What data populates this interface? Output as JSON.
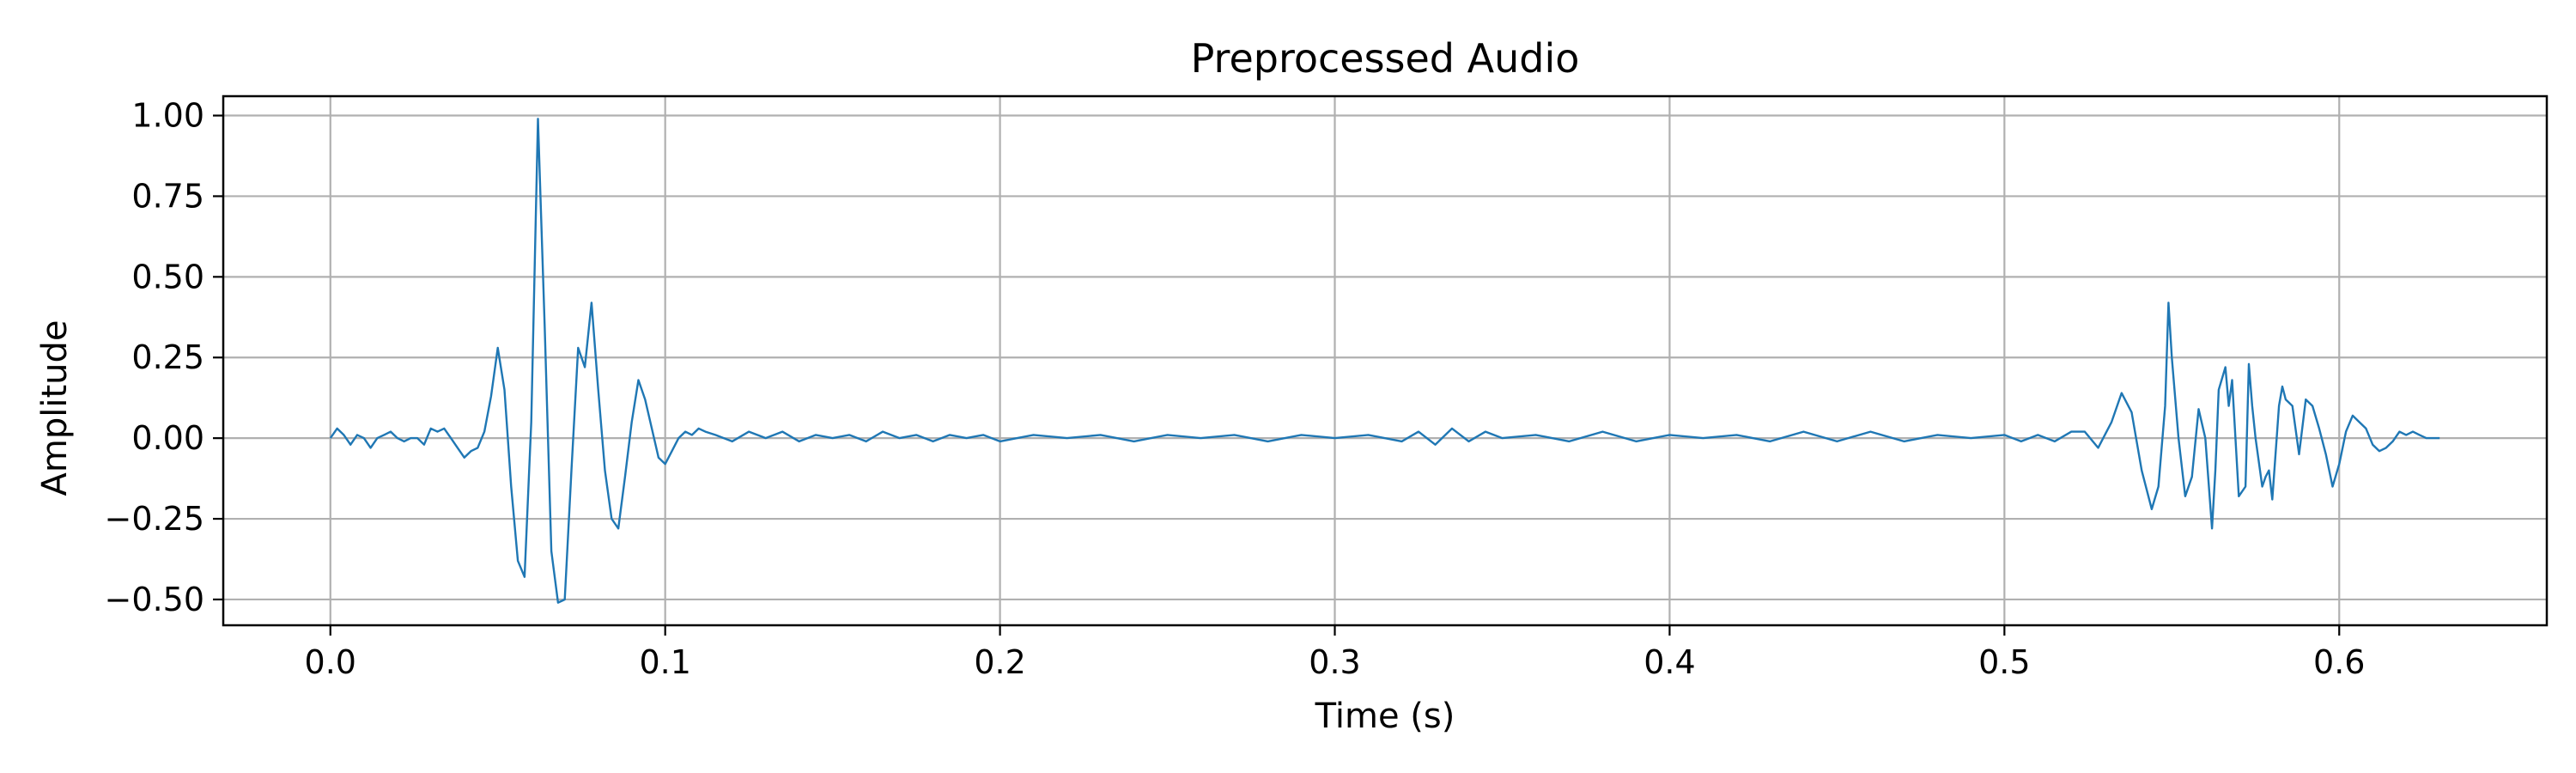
{
  "chart_data": {
    "type": "line",
    "title": "Preprocessed Audio",
    "xlabel": "Time (s)",
    "ylabel": "Amplitude",
    "xlim": [
      -0.032,
      0.662
    ],
    "ylim": [
      -0.58,
      1.06
    ],
    "grid": true,
    "x_ticks": [
      0.0,
      0.1,
      0.2,
      0.3,
      0.4,
      0.5,
      0.6
    ],
    "x_tick_labels": [
      "0.0",
      "0.1",
      "0.2",
      "0.3",
      "0.4",
      "0.5",
      "0.6"
    ],
    "y_ticks": [
      1.0,
      0.75,
      0.5,
      0.25,
      0.0,
      -0.25,
      -0.5
    ],
    "y_tick_labels": [
      "1.00",
      "0.75",
      "0.50",
      "0.25",
      "0.00",
      "−0.25",
      "−0.50"
    ],
    "series": [
      {
        "color": "#1f77b4",
        "x": [
          0.0,
          0.002,
          0.004,
          0.006,
          0.008,
          0.01,
          0.012,
          0.014,
          0.016,
          0.018,
          0.02,
          0.022,
          0.024,
          0.026,
          0.028,
          0.03,
          0.032,
          0.034,
          0.036,
          0.038,
          0.04,
          0.042,
          0.044,
          0.046,
          0.048,
          0.05,
          0.052,
          0.054,
          0.056,
          0.058,
          0.06,
          0.062,
          0.064,
          0.066,
          0.068,
          0.07,
          0.072,
          0.074,
          0.076,
          0.078,
          0.08,
          0.082,
          0.084,
          0.086,
          0.088,
          0.09,
          0.092,
          0.094,
          0.096,
          0.098,
          0.1,
          0.102,
          0.104,
          0.106,
          0.108,
          0.11,
          0.112,
          0.115,
          0.12,
          0.125,
          0.13,
          0.135,
          0.14,
          0.145,
          0.15,
          0.155,
          0.16,
          0.165,
          0.17,
          0.175,
          0.18,
          0.185,
          0.19,
          0.195,
          0.2,
          0.21,
          0.22,
          0.23,
          0.24,
          0.25,
          0.26,
          0.27,
          0.28,
          0.29,
          0.3,
          0.31,
          0.32,
          0.325,
          0.33,
          0.335,
          0.34,
          0.345,
          0.35,
          0.36,
          0.37,
          0.38,
          0.39,
          0.4,
          0.41,
          0.42,
          0.43,
          0.44,
          0.45,
          0.46,
          0.47,
          0.48,
          0.49,
          0.5,
          0.505,
          0.51,
          0.515,
          0.52,
          0.524,
          0.528,
          0.532,
          0.535,
          0.538,
          0.541,
          0.544,
          0.546,
          0.548,
          0.549,
          0.55,
          0.552,
          0.554,
          0.556,
          0.558,
          0.56,
          0.562,
          0.563,
          0.564,
          0.566,
          0.567,
          0.568,
          0.57,
          0.572,
          0.573,
          0.574,
          0.575,
          0.577,
          0.578,
          0.579,
          0.58,
          0.582,
          0.583,
          0.584,
          0.586,
          0.588,
          0.59,
          0.592,
          0.594,
          0.596,
          0.598,
          0.6,
          0.602,
          0.604,
          0.606,
          0.608,
          0.61,
          0.612,
          0.614,
          0.616,
          0.618,
          0.62,
          0.622,
          0.624,
          0.626,
          0.628,
          0.63
        ],
        "y": [
          0.0,
          0.03,
          0.01,
          -0.02,
          0.01,
          0.0,
          -0.03,
          0.0,
          0.01,
          0.02,
          0.0,
          -0.01,
          0.0,
          0.0,
          -0.02,
          0.03,
          0.02,
          0.03,
          0.0,
          -0.03,
          -0.06,
          -0.04,
          -0.03,
          0.02,
          0.13,
          0.28,
          0.15,
          -0.15,
          -0.38,
          -0.43,
          0.05,
          0.99,
          0.35,
          -0.35,
          -0.51,
          -0.5,
          -0.1,
          0.28,
          0.22,
          0.42,
          0.15,
          -0.1,
          -0.25,
          -0.28,
          -0.12,
          0.05,
          0.18,
          0.12,
          0.03,
          -0.06,
          -0.08,
          -0.04,
          0.0,
          0.02,
          0.01,
          0.03,
          0.02,
          0.01,
          -0.01,
          0.02,
          0.0,
          0.02,
          -0.01,
          0.01,
          0.0,
          0.01,
          -0.01,
          0.02,
          0.0,
          0.01,
          -0.01,
          0.01,
          0.0,
          0.01,
          -0.01,
          0.01,
          0.0,
          0.01,
          -0.01,
          0.01,
          0.0,
          0.01,
          -0.01,
          0.01,
          0.0,
          0.01,
          -0.01,
          0.02,
          -0.02,
          0.03,
          -0.01,
          0.02,
          0.0,
          0.01,
          -0.01,
          0.02,
          -0.01,
          0.01,
          0.0,
          0.01,
          -0.01,
          0.02,
          -0.01,
          0.02,
          -0.01,
          0.01,
          0.0,
          0.01,
          -0.01,
          0.01,
          -0.01,
          0.02,
          0.02,
          -0.03,
          0.05,
          0.14,
          0.08,
          -0.1,
          -0.22,
          -0.15,
          0.1,
          0.42,
          0.25,
          0.0,
          -0.18,
          -0.12,
          0.09,
          0.0,
          -0.28,
          -0.1,
          0.15,
          0.22,
          0.1,
          0.18,
          -0.18,
          -0.15,
          0.23,
          0.1,
          0.0,
          -0.15,
          -0.12,
          -0.1,
          -0.19,
          0.1,
          0.16,
          0.12,
          0.1,
          -0.05,
          0.12,
          0.1,
          0.03,
          -0.05,
          -0.15,
          -0.08,
          0.02,
          0.07,
          0.05,
          0.03,
          -0.02,
          -0.04,
          -0.03,
          -0.01,
          0.02,
          0.01,
          0.02,
          0.01,
          0.0,
          0.0,
          0.0
        ]
      }
    ]
  }
}
